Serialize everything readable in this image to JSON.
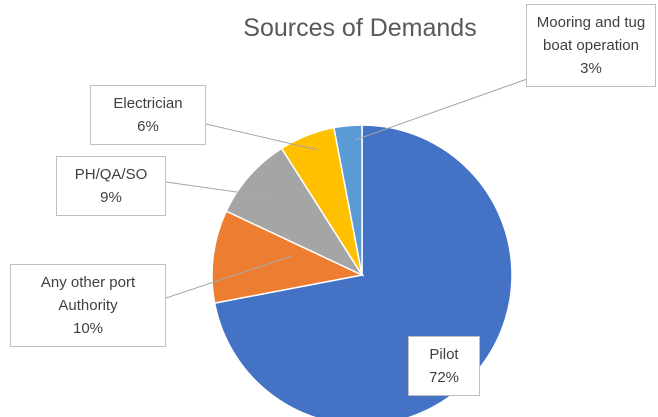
{
  "chart_data": {
    "type": "pie",
    "title": "Sources of Demands",
    "categories": [
      "Pilot",
      "Any other port Authority",
      "PH/QA/SO",
      "Electrician",
      "Mooring and tug boat operation"
    ],
    "values": [
      72,
      10,
      9,
      6,
      3
    ],
    "value_labels": [
      "72%",
      "10%",
      "9%",
      "6%",
      "3%"
    ],
    "colors": [
      "#4472c4",
      "#ed7d31",
      "#a5a5a5",
      "#ffc000",
      "#5b9bd5"
    ]
  }
}
